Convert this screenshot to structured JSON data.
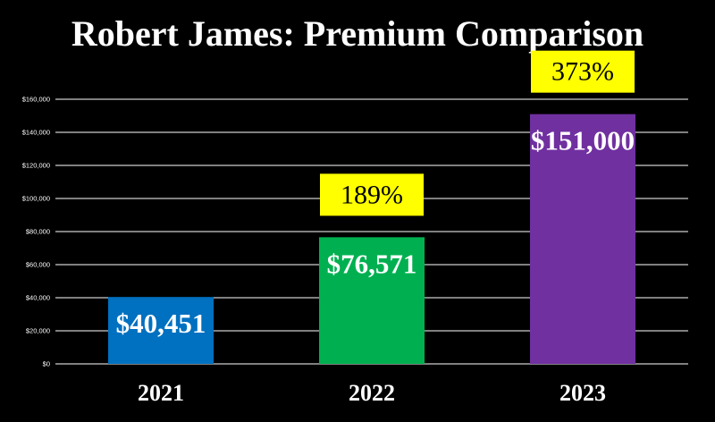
{
  "title": "Robert James: Premium Comparison",
  "colors": {
    "background": "#000000",
    "gridline": "#ffffff",
    "callout_fill": "#ffff00"
  },
  "chart_data": {
    "type": "bar",
    "title": "Robert James: Premium Comparison",
    "xlabel": "",
    "ylabel": "",
    "categories": [
      "2021",
      "2022",
      "2023"
    ],
    "values": [
      40451,
      76571,
      151000
    ],
    "data_labels": [
      "$40,451",
      "$76,571",
      "$151,000"
    ],
    "bar_colors": [
      "#0070c0",
      "#00b050",
      "#7030a0"
    ],
    "percent_callouts": [
      null,
      "189%",
      "373%"
    ],
    "ylim": [
      0,
      160000
    ],
    "ytick_values": [
      0,
      20000,
      40000,
      60000,
      80000,
      100000,
      120000,
      140000,
      160000
    ],
    "ytick_labels": [
      "$0",
      "$20,000",
      "$40,000",
      "$60,000",
      "$80,000",
      "$100,000",
      "$120,000",
      "$140,000",
      "$160,000"
    ],
    "grid": true,
    "legend": "none"
  }
}
